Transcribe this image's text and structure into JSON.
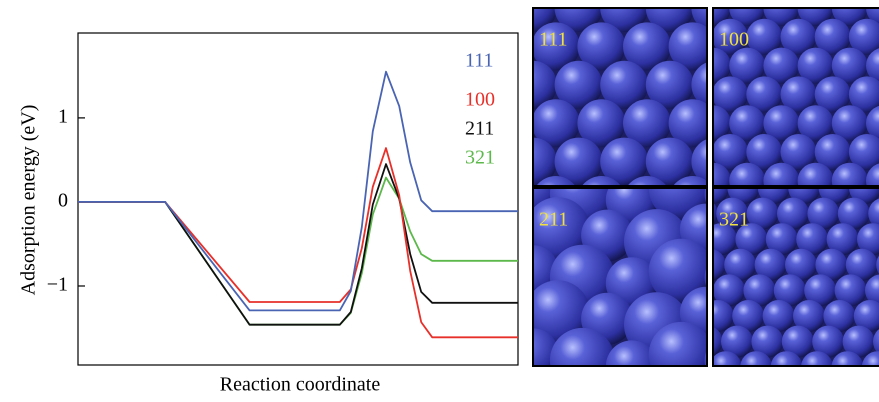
{
  "chart_data": {
    "type": "line",
    "y_label": "Adsorption energy (eV)",
    "x_label": "Reaction coordinate",
    "x": [
      0,
      19.8,
      39,
      59.5,
      62,
      64.5,
      67,
      70,
      73,
      75.5,
      78,
      80.5,
      100
    ],
    "xlim": [
      0,
      100
    ],
    "ylim": [
      -1.94,
      2.01
    ],
    "yticks": [
      {
        "value": -1,
        "label": "−1"
      },
      0,
      1
    ],
    "series": [
      {
        "name": "111",
        "color": "#4a64b4",
        "values": [
          0,
          0,
          -1.29,
          -1.29,
          -1.06,
          -0.3,
          0.84,
          1.55,
          1.14,
          0.47,
          0.02,
          -0.11,
          -0.11
        ]
      },
      {
        "name": "100",
        "color": "#e8302a",
        "values": [
          0,
          0,
          -1.19,
          -1.19,
          -1.04,
          -0.55,
          0.18,
          0.64,
          0.08,
          -0.82,
          -1.43,
          -1.61,
          -1.61
        ]
      },
      {
        "name": "211",
        "color": "#111111",
        "values": [
          0,
          0,
          -1.46,
          -1.46,
          -1.31,
          -0.79,
          -0.03,
          0.45,
          0.04,
          -0.62,
          -1.07,
          -1.2,
          -1.2
        ]
      },
      {
        "name": "321",
        "color": "#5cb84a",
        "values": [
          0,
          0,
          -1.46,
          -1.46,
          -1.32,
          -0.85,
          -0.15,
          0.29,
          0.04,
          -0.35,
          -0.62,
          -0.7,
          -0.7
        ]
      }
    ]
  },
  "panels": [
    {
      "label": "111"
    },
    {
      "label": "100"
    },
    {
      "label": "211"
    },
    {
      "label": "321"
    }
  ]
}
